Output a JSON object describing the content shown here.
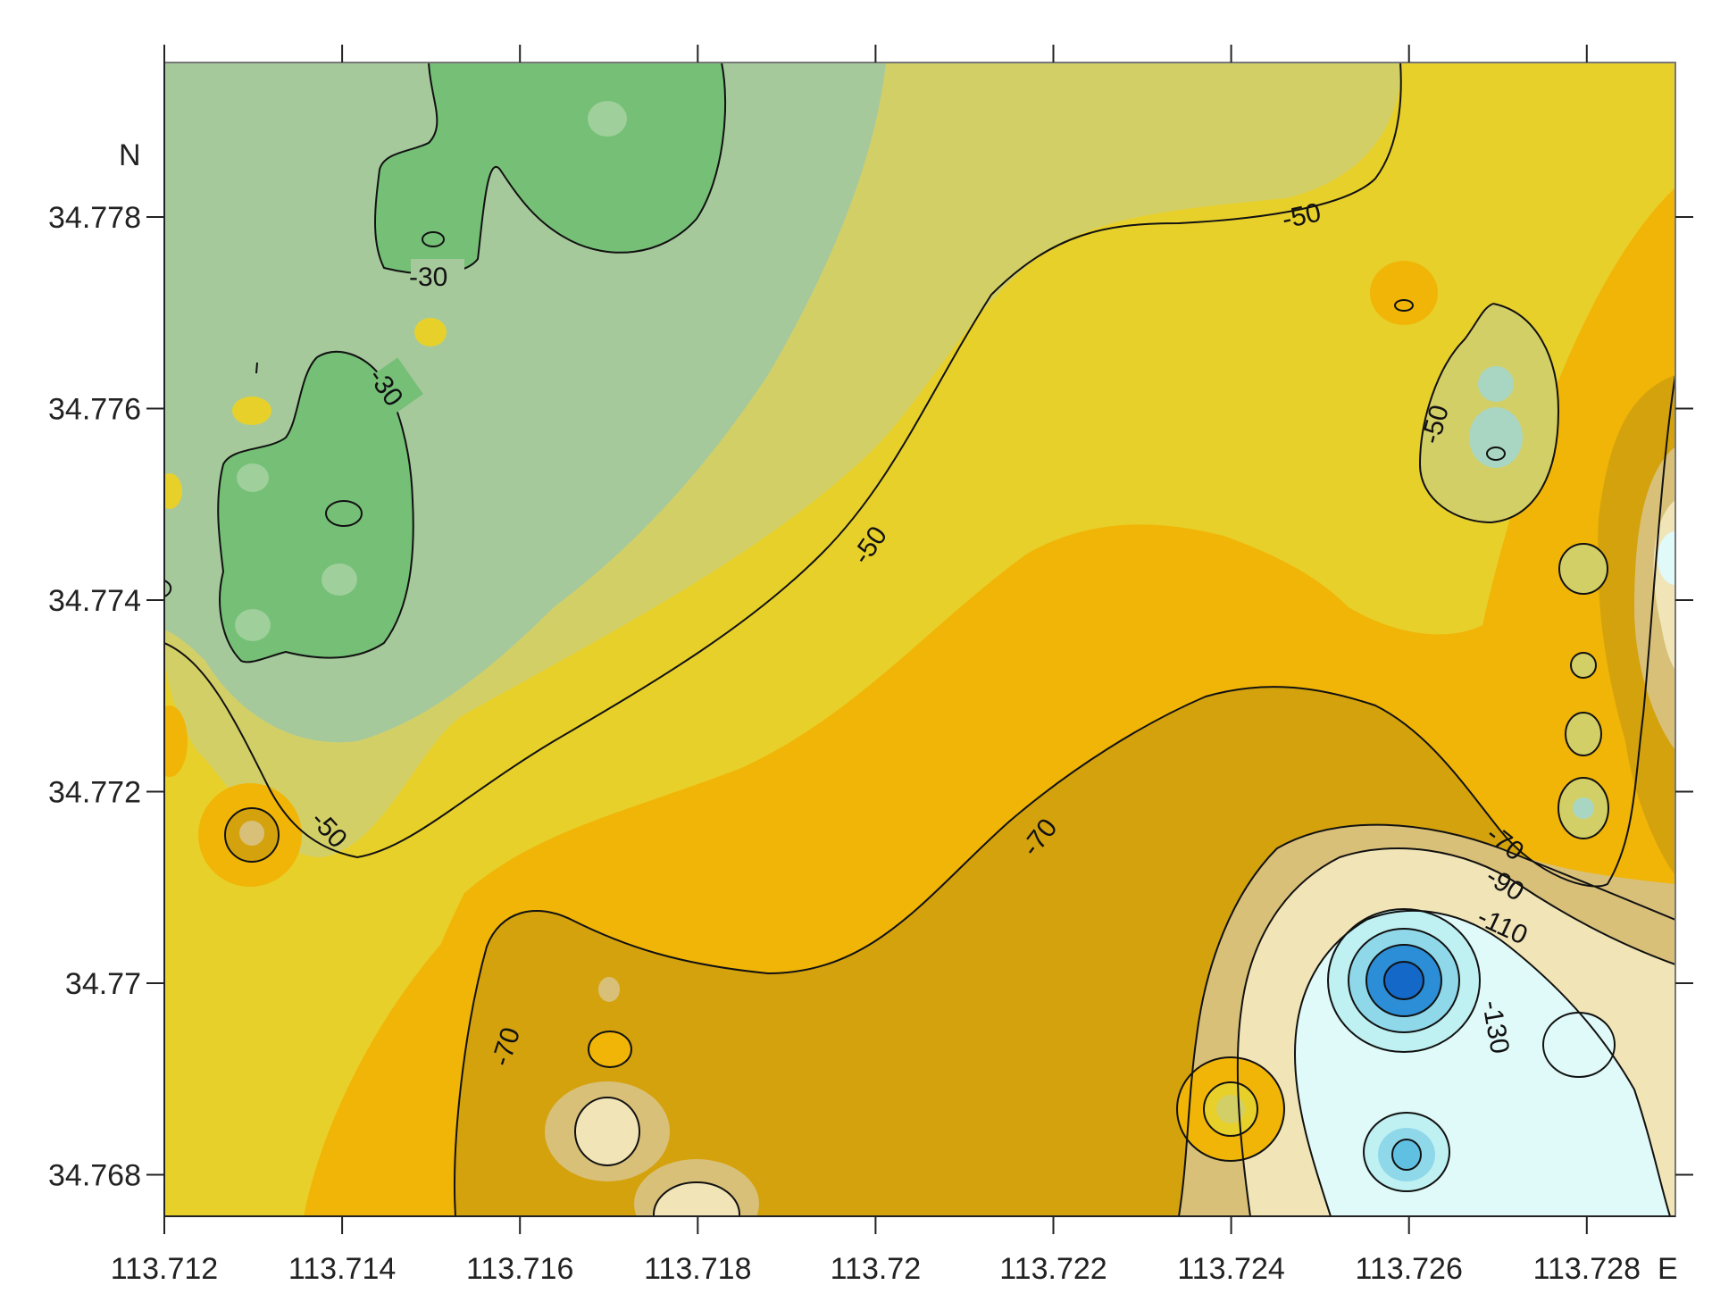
{
  "map": {
    "x_axis": {
      "ticks": [
        "113.712",
        "113.714",
        "113.716",
        "113.718",
        "113.72",
        "113.722",
        "113.724",
        "113.726",
        "113.728"
      ],
      "unit_label": "E"
    },
    "y_axis": {
      "ticks": [
        "34.778",
        "34.776",
        "34.774",
        "34.772",
        "34.77",
        "34.768"
      ],
      "unit_label": "N"
    },
    "contour_labels": [
      {
        "id": "label-30-a",
        "text": "-30"
      },
      {
        "id": "label-30-b",
        "text": "-30"
      },
      {
        "id": "label-50-a",
        "text": "-50"
      },
      {
        "id": "label-50-b",
        "text": "-50"
      },
      {
        "id": "label-50-c",
        "text": "-50"
      },
      {
        "id": "label-50-d",
        "text": "-50"
      },
      {
        "id": "label-70-a",
        "text": "-70"
      },
      {
        "id": "label-70-b",
        "text": "-70"
      },
      {
        "id": "label-70-c",
        "text": "-70"
      },
      {
        "id": "label-90",
        "text": "-90"
      },
      {
        "id": "label-110",
        "text": "-110"
      },
      {
        "id": "label-130",
        "text": "-130"
      }
    ],
    "colors": {
      "pale_green": "#a6c99c",
      "green": "#75bf77",
      "olive": "#d3cf67",
      "yellow": "#e8d02b",
      "orange": "#f0b507",
      "dark_gold": "#d4a20d",
      "tan": "#d9c079",
      "cream": "#f1e4b6",
      "light_cyan": "#dffaf8",
      "cyan": "#8fd8ea",
      "blue": "#2b8ed6",
      "deep_blue": "#1468c8"
    }
  }
}
